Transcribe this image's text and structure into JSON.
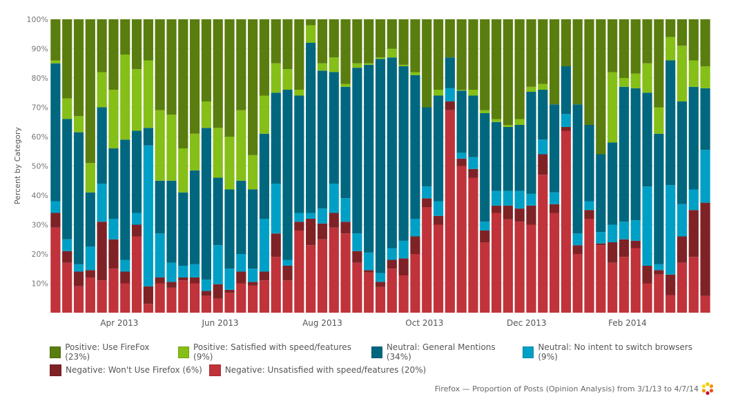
{
  "chart_data": {
    "type": "bar",
    "stacked": true,
    "normalized_percent": true,
    "title": "Firefox — Proportion of Posts (Opinion Analysis) from 3/1/13 to 4/7/14",
    "xlabel": "",
    "ylabel": "Percent by Category",
    "ylim": [
      0,
      100
    ],
    "yticks": [
      "10%",
      "20%",
      "30%",
      "40%",
      "50%",
      "60%",
      "70%",
      "80%",
      "90%",
      "100%"
    ],
    "xtick_labels": [
      {
        "label": "Apr 2013",
        "bar_index": 5.5
      },
      {
        "label": "Jun 2013",
        "bar_index": 14.2
      },
      {
        "label": "Aug 2013",
        "bar_index": 23.0
      },
      {
        "label": "Oct 2013",
        "bar_index": 31.8
      },
      {
        "label": "Dec 2013",
        "bar_index": 40.6
      },
      {
        "label": "Feb 2014",
        "bar_index": 49.3
      }
    ],
    "grid": true,
    "legend_position": "bottom",
    "bar_count": 57,
    "series": [
      {
        "name": "Negative: Unsatisfied with speed/features (20%)",
        "color": "#c0333a",
        "values": [
          29,
          17,
          9,
          12,
          11,
          15,
          10,
          26,
          3,
          10,
          8.5,
          11,
          10,
          5.7,
          4.8,
          6.8,
          10,
          9.2,
          11,
          19,
          11,
          28,
          23,
          25,
          29,
          27,
          17,
          13.7,
          8.8,
          15,
          12.7,
          20,
          36,
          30,
          69,
          50,
          46,
          24,
          34,
          31.8,
          31,
          30,
          47,
          34,
          62,
          20,
          32,
          23,
          17,
          19,
          22,
          10,
          13,
          6,
          17,
          19,
          5.7
        ]
      },
      {
        "name": "Negative: Won't Use Firefox (6%)",
        "color": "#7f2226",
        "values": [
          5,
          4,
          5,
          2.5,
          20,
          10,
          4,
          4,
          6,
          2,
          2,
          1,
          2,
          1.7,
          4.9,
          1,
          4,
          1.3,
          3,
          8,
          5,
          3,
          9,
          5.4,
          5,
          4,
          4,
          0.8,
          1.7,
          3,
          5.8,
          6,
          3,
          3,
          3,
          2.5,
          3,
          4,
          2.5,
          4.7,
          4.5,
          6.5,
          7,
          3,
          1.3,
          3,
          3,
          0.6,
          7,
          6,
          2.5,
          6,
          1.5,
          7,
          9,
          16,
          31.8
        ]
      },
      {
        "name": "Neutral: No intent to switch browsers (9%)",
        "color": "#00a0c6",
        "values": [
          4,
          4,
          2.5,
          8,
          13,
          7,
          4,
          4,
          48,
          15,
          6.5,
          4,
          4.5,
          3.9,
          13.3,
          7.2,
          6,
          4.5,
          18,
          17,
          2,
          3,
          2,
          5.1,
          10,
          8,
          6,
          6,
          3,
          4,
          6,
          6,
          4,
          5,
          4.5,
          2,
          4,
          3,
          5,
          5,
          6,
          4,
          5,
          4,
          4.4,
          4,
          3,
          3.9,
          6,
          6,
          7,
          27,
          2,
          30.5,
          11,
          7,
          18
        ]
      },
      {
        "name": "Neutral: General Mentions (34%)",
        "color": "#00677f",
        "values": [
          47,
          41,
          45,
          18.5,
          26,
          24,
          41,
          28,
          6,
          18,
          28,
          25,
          32,
          51.7,
          23,
          27,
          25,
          27,
          29,
          31,
          58,
          40,
          58,
          47,
          38,
          38,
          56.5,
          64,
          73,
          65,
          59.5,
          49,
          27,
          36,
          10.5,
          21.2,
          21,
          37,
          23.5,
          21.8,
          22.5,
          34.8,
          17,
          30,
          16.3,
          44,
          26,
          26.5,
          28,
          46,
          45,
          32,
          44.5,
          42.5,
          35,
          35,
          21
        ]
      },
      {
        "name": "Positive: Satisfied with speed/features (9%)",
        "color": "#85bf17",
        "values": [
          1,
          7,
          5.5,
          10,
          12,
          20,
          29,
          21,
          23,
          24,
          22.5,
          15,
          12.5,
          9,
          17,
          18,
          24,
          11.7,
          13,
          10,
          7,
          2,
          6,
          2.5,
          5,
          1,
          1.5,
          0.5,
          0.5,
          3,
          0.5,
          1,
          0,
          2,
          0,
          0.3,
          2,
          1,
          1,
          0.7,
          2,
          1.7,
          2,
          0,
          0,
          0,
          0,
          0,
          24,
          3,
          5,
          10,
          9,
          8,
          19,
          9,
          7.5
        ]
      },
      {
        "name": "Positive: Use FireFox (23%)",
        "color": "#5a7d0f",
        "values": [
          14,
          27,
          33,
          49,
          18,
          24,
          12,
          17,
          14,
          31,
          32.5,
          44,
          39,
          28,
          37,
          40,
          31,
          46.3,
          26,
          15,
          17,
          24,
          2,
          15,
          13,
          22,
          15,
          15,
          13,
          10,
          15.5,
          18,
          30,
          24,
          13,
          24,
          24,
          31,
          34,
          36,
          34,
          23,
          22,
          29,
          16,
          29,
          36,
          46,
          18,
          20,
          18.5,
          15,
          30,
          6,
          9,
          14,
          16
        ]
      }
    ]
  },
  "legend": {
    "rows": [
      [
        {
          "label": "Positive: Use FireFox (23%)",
          "color": "#5a7d0f"
        },
        {
          "label": "Positive: Satisfied with speed/features (9%)",
          "color": "#85bf17"
        },
        {
          "label": "Neutral: General Mentions (34%)",
          "color": "#00677f"
        },
        {
          "label": "Neutral: No intent to switch browsers (9%)",
          "color": "#00a0c6"
        }
      ],
      [
        {
          "label": "Negative: Won't Use Firefox (6%)",
          "color": "#7f2226"
        },
        {
          "label": "Negative: Unsatisfied with speed/features (20%)",
          "color": "#c0333a"
        }
      ]
    ]
  },
  "footer": {
    "caption": "Firefox — Proportion of Posts (Opinion Analysis) from 3/1/13 to 4/7/14",
    "logo_icon": "dotted-ring-logo-icon"
  }
}
